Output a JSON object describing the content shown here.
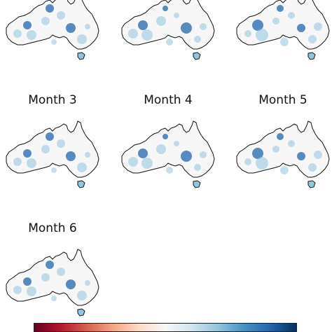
{
  "panels": [
    {
      "title": "",
      "visible_title": false
    },
    {
      "title": "",
      "visible_title": false
    },
    {
      "title": "",
      "visible_title": false
    },
    {
      "title": "Month 3",
      "visible_title": true
    },
    {
      "title": "Month 4",
      "visible_title": true
    },
    {
      "title": "Month 5",
      "visible_title": true
    },
    {
      "title": "Month 6",
      "visible_title": true
    }
  ],
  "map": {
    "region": "Australia",
    "base_color": "#f7f7f7",
    "outline_color": "#111111"
  },
  "colorbar": {
    "colormap": "RdBu",
    "stops": [
      "#67001f",
      "#b2182b",
      "#d6604d",
      "#f4a582",
      "#fddbc7",
      "#f7f7f7",
      "#d1e5f0",
      "#92c5de",
      "#4393c3",
      "#2166ac",
      "#053061"
    ],
    "tick_labels_visible": false
  }
}
